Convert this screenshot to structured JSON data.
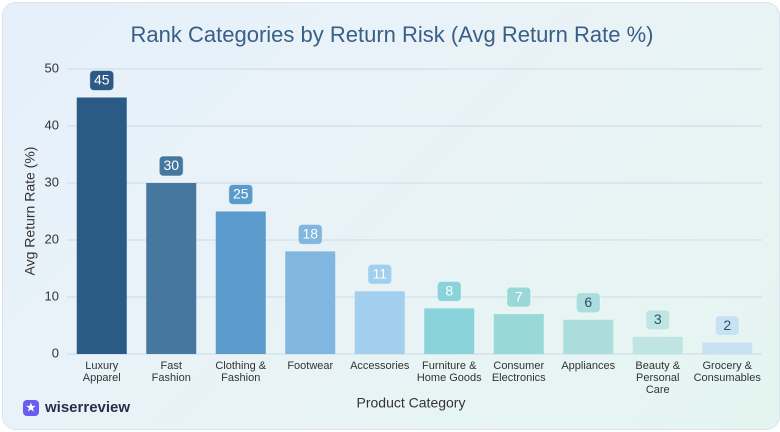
{
  "chart_data": {
    "type": "bar",
    "title": "Rank Categories by Return Risk (Avg Return Rate %)",
    "x_label": "Product Category",
    "y_label": "Avg Return Rate (%)",
    "categories": [
      "Luxury\nApparel",
      "Fast\nFashion",
      "Clothing &\nFashion",
      "Footwear",
      "Accessories",
      "Furniture &\nHome Goods",
      "Consumer\nElectronics",
      "Appliances",
      "Beauty &\nPersonal\nCare",
      "Grocery &\nConsumables"
    ],
    "values": [
      45,
      30,
      25,
      18,
      11,
      8,
      7,
      6,
      3,
      2
    ],
    "colors": [
      "#2b5a85",
      "#46789f",
      "#5a9bcc",
      "#80b6df",
      "#a2cfee",
      "#8bd3db",
      "#98d9d8",
      "#aadddc",
      "#bfe5e3",
      "#c6e2f3"
    ],
    "ylim": [
      0,
      50
    ],
    "yticks": [
      0,
      10,
      20,
      30,
      40,
      50
    ],
    "grid": true,
    "brand": "wiserreview"
  }
}
